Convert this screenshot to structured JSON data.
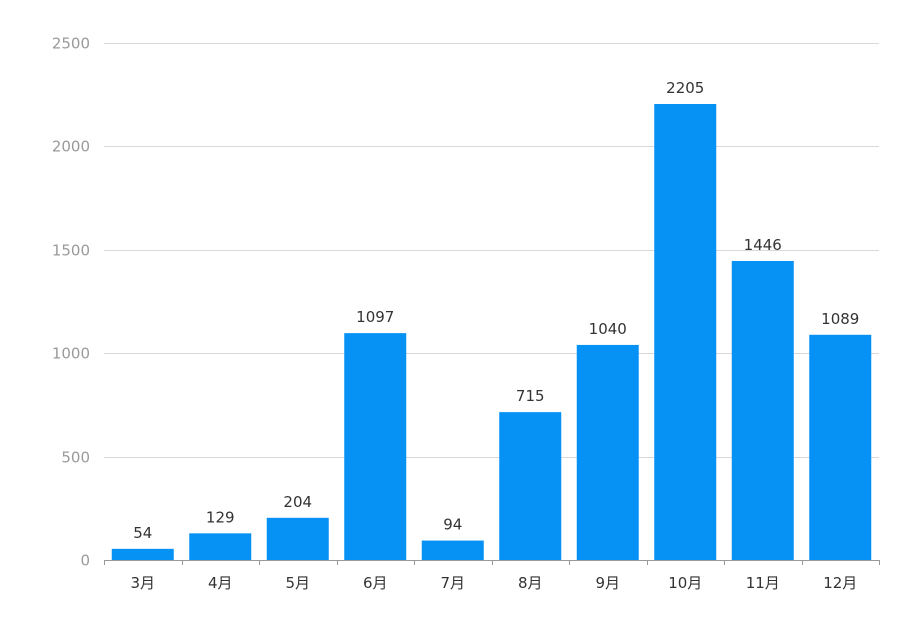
{
  "colors": {
    "bar": "#0691f5",
    "grid": "#d9d9d9",
    "axis": "#9a9a9a",
    "label_text": "#333333"
  },
  "chart_data": {
    "type": "bar",
    "title": "",
    "xlabel": "",
    "ylabel": "",
    "categories": [
      "3月",
      "4月",
      "5月",
      "6月",
      "7月",
      "8月",
      "9月",
      "10月",
      "11月",
      "12月"
    ],
    "values": [
      54,
      129,
      204,
      1097,
      94,
      715,
      1040,
      2205,
      1446,
      1089
    ],
    "ylim": [
      0,
      2500
    ],
    "yticks": [
      0,
      500,
      1000,
      1500,
      2000,
      2500
    ],
    "grid": true,
    "legend": "none",
    "data_labels": true
  }
}
